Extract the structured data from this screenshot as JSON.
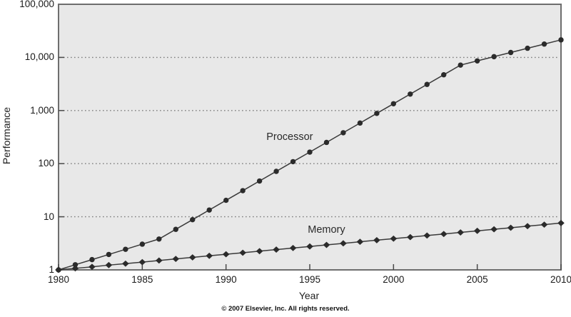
{
  "figure": {
    "copyright": "© 2007 Elsevier, Inc. All rights reserved."
  },
  "chart_data": {
    "type": "line",
    "title": "",
    "xlabel": "Year",
    "ylabel": "Performance",
    "y_scale": "log",
    "xlim": [
      1980,
      2010
    ],
    "ylim": [
      1,
      100000
    ],
    "grid": "horizontal-dotted",
    "legend_position": "inline-annotations",
    "x_ticks": [
      {
        "label": "1980",
        "value": 1980
      },
      {
        "label": "1985",
        "value": 1985
      },
      {
        "label": "1990",
        "value": 1990
      },
      {
        "label": "1995",
        "value": 1995
      },
      {
        "label": "2000",
        "value": 2000
      },
      {
        "label": "2005",
        "value": 2005
      },
      {
        "label": "2010",
        "value": 2010
      }
    ],
    "y_ticks": [
      {
        "label": "1",
        "value": 1
      },
      {
        "label": "10",
        "value": 10
      },
      {
        "label": "100",
        "value": 100
      },
      {
        "label": "1,000",
        "value": 1000
      },
      {
        "label": "10,000",
        "value": 10000
      },
      {
        "label": "100,000",
        "value": 100000
      }
    ],
    "x": [
      1980,
      1981,
      1982,
      1983,
      1984,
      1985,
      1986,
      1987,
      1988,
      1989,
      1990,
      1991,
      1992,
      1993,
      1994,
      1995,
      1996,
      1997,
      1998,
      1999,
      2000,
      2001,
      2002,
      2003,
      2004,
      2005,
      2006,
      2007,
      2008,
      2009,
      2010
    ],
    "series": [
      {
        "name": "Processor",
        "marker": "circle",
        "values": [
          1,
          1.25,
          1.56,
          1.95,
          2.44,
          3.05,
          3.81,
          5.8,
          8.81,
          13.4,
          20.4,
          31,
          47.1,
          71.6,
          109,
          165,
          251,
          382,
          581,
          883,
          1342,
          2040,
          3101,
          4714,
          7166,
          8599,
          10319,
          12383,
          14859,
          17831,
          21397
        ]
      },
      {
        "name": "Memory",
        "marker": "diamond",
        "values": [
          1,
          1.07,
          1.14,
          1.23,
          1.31,
          1.4,
          1.5,
          1.61,
          1.72,
          1.84,
          1.97,
          2.1,
          2.25,
          2.41,
          2.58,
          2.76,
          2.95,
          3.16,
          3.38,
          3.62,
          3.87,
          4.14,
          4.43,
          4.74,
          5.07,
          5.43,
          5.81,
          6.21,
          6.65,
          7.11,
          7.61
        ]
      }
    ],
    "annotations": [
      {
        "text": "Processor",
        "year": 1993.8,
        "value": 320
      },
      {
        "text": "Memory",
        "year": 1996.0,
        "value": 5.66
      }
    ],
    "colors": {
      "plot_bg": "#e8e8e8",
      "border": "#6e6e6e",
      "grid": "#7d7d7d",
      "line": "#3a3a3a",
      "marker": "#2b2b2b",
      "tick": "#4a4a4a",
      "text": "#1a1a1a"
    }
  }
}
